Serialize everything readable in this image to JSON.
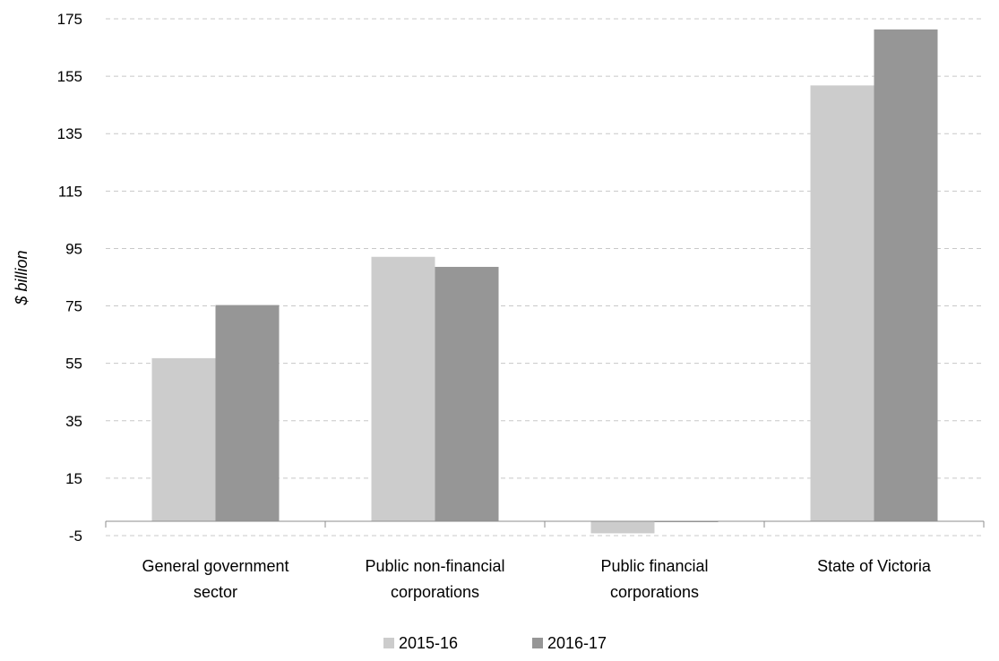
{
  "chart_data": {
    "type": "bar",
    "title": "",
    "ylabel": "$ billion",
    "xlabel": "",
    "ylim": [
      -5,
      175
    ],
    "yticks": [
      -5,
      15,
      35,
      55,
      75,
      95,
      115,
      135,
      155,
      175
    ],
    "grid": "horizontal-dashed",
    "legend_position": "bottom",
    "categories": [
      [
        "General government",
        "sector"
      ],
      [
        "Public non-financial",
        "corporations"
      ],
      [
        "Public financial",
        "corporations"
      ],
      [
        "State of Victoria"
      ]
    ],
    "series": [
      {
        "name": "2015-16",
        "color": "#cccccc",
        "values": [
          56.8,
          92.1,
          -4.2,
          151.8
        ]
      },
      {
        "name": "2016-17",
        "color": "#969696",
        "values": [
          75.3,
          88.6,
          -0.3,
          171.3
        ]
      }
    ]
  }
}
